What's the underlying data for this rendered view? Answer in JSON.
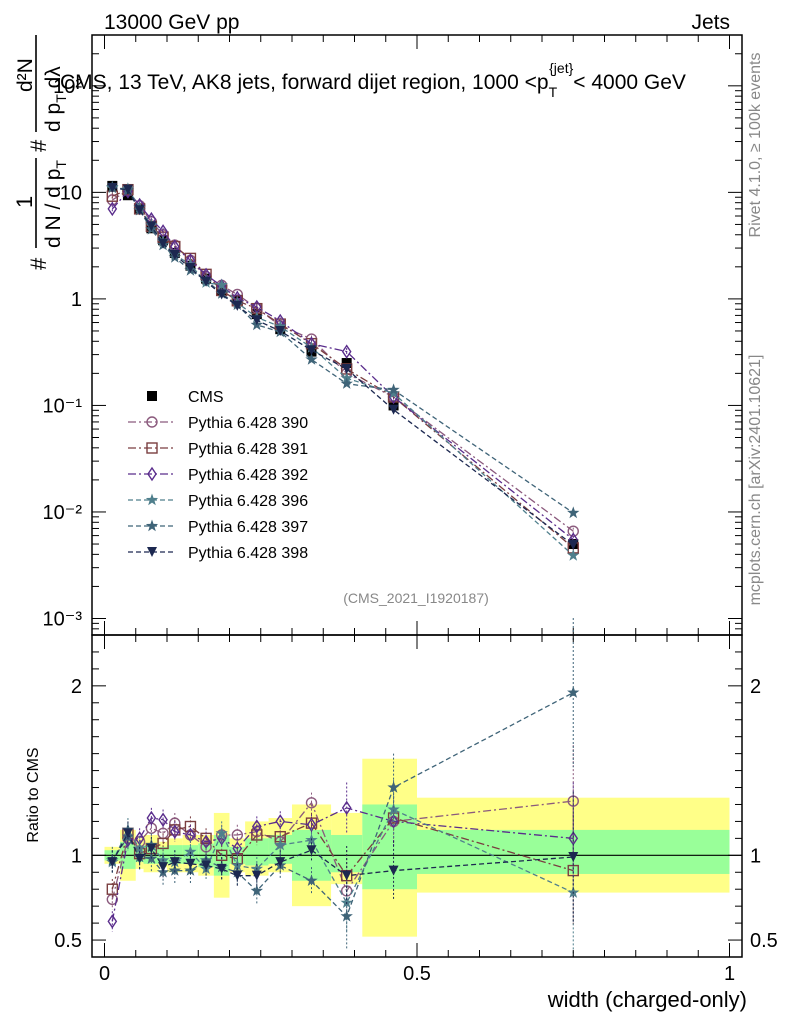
{
  "header": {
    "left": "13000 GeV pp",
    "right": "Jets"
  },
  "side_text": {
    "rivet": "Rivet 4.1.0, ≥ 100k events",
    "site": "mcplots.cern.ch [arXiv:2401.10621]"
  },
  "watermark": "(CMS_2021_I1920187)",
  "colors": {
    "data": "#000000",
    "p390": "#8b5a7d",
    "p391": "#7a3e40",
    "p392": "#5a2d8c",
    "p396": "#4f7f8c",
    "p397": "#3f6478",
    "p398": "#1c2850",
    "band_outer": "#ffff88",
    "band_inner": "#99ff99"
  },
  "chart_data": [
    {
      "type": "line",
      "title": "CMS, 13 TeV, AK8 jets, forward dijet region, 1000 <p_T^{jet}< 4000 GeV",
      "title_parts": {
        "pre": "CMS, 13 TeV, AK8 jets, forward dijet region, 1000 <p",
        "sub": "T",
        "sup": "{jet}",
        "post": "< 4000 GeV"
      },
      "ylabel": "1/(dN/dp_T) d²N/(dp_T dλ)",
      "ylabel_parts": {
        "hash": "#",
        "one": "1",
        "den": "d N / d p",
        "T": "T",
        "num": "d²N",
        "num_den_pre": "d p",
        "num_den_post": " dλ"
      },
      "yscale": "log",
      "ylim": [
        0.0007,
        300
      ],
      "xlim": [
        -0.02,
        1.02
      ],
      "ytick_labels": {
        "0.001": "10⁻³",
        "0.01": "10⁻²",
        "0.1": "10⁻¹",
        "1": "1",
        "10": "10",
        "100": "10²"
      },
      "legend_position": "middle-left",
      "x": [
        0.0125,
        0.0375,
        0.0562,
        0.075,
        0.0937,
        0.1125,
        0.1375,
        0.1625,
        0.1875,
        0.2125,
        0.2437,
        0.2812,
        0.3312,
        0.3875,
        0.4625,
        0.75
      ],
      "series": [
        {
          "name": "CMS",
          "style": "data",
          "marker": "square-filled",
          "values": [
            11.5,
            9.4,
            6.9,
            4.6,
            3.55,
            2.7,
            2.05,
            1.55,
            1.2,
            0.98,
            0.72,
            0.52,
            0.32,
            0.25,
            0.1,
            0.005
          ]
        },
        {
          "name": "Pythia 6.428 390",
          "style": "p390",
          "marker": "circle-open",
          "dash": "8,3,2,3",
          "values": [
            8.5,
            10.4,
            7.5,
            5.3,
            4.0,
            3.2,
            2.3,
            1.62,
            1.34,
            1.1,
            0.82,
            0.56,
            0.42,
            0.2,
            0.12,
            0.0066
          ]
        },
        {
          "name": "Pythia 6.428 391",
          "style": "p391",
          "marker": "square-open",
          "dash": "8,3,2,3",
          "values": [
            9.2,
            10.6,
            7.0,
            4.8,
            3.8,
            3.1,
            2.4,
            1.7,
            1.2,
            0.96,
            0.81,
            0.58,
            0.38,
            0.22,
            0.12,
            0.0046
          ]
        },
        {
          "name": "Pythia 6.428 392",
          "style": "p392",
          "marker": "diamond-open",
          "dash": "8,3,2,3",
          "values": [
            7.0,
            10.2,
            7.6,
            5.6,
            4.3,
            3.1,
            2.3,
            1.68,
            1.32,
            1.02,
            0.84,
            0.62,
            0.38,
            0.32,
            0.12,
            0.0055
          ]
        },
        {
          "name": "Pythia 6.428 396",
          "style": "p396",
          "marker": "star",
          "dash": "5,3",
          "values": [
            11.0,
            10.8,
            7.2,
            4.9,
            3.45,
            2.6,
            2.1,
            1.42,
            1.35,
            0.92,
            0.67,
            0.55,
            0.35,
            0.18,
            0.13,
            0.0039
          ]
        },
        {
          "name": "Pythia 6.428 397",
          "style": "p397",
          "marker": "star",
          "dash": "5,3",
          "values": [
            11.2,
            10.4,
            6.8,
            4.5,
            3.2,
            2.45,
            1.85,
            1.5,
            1.12,
            0.88,
            0.57,
            0.49,
            0.27,
            0.16,
            0.14,
            0.0098
          ]
        },
        {
          "name": "Pythia 6.428 398",
          "style": "p398",
          "marker": "triangle-down",
          "dash": "5,3",
          "values": [
            11.0,
            10.6,
            6.8,
            4.8,
            3.3,
            2.58,
            1.95,
            1.45,
            1.1,
            0.86,
            0.63,
            0.5,
            0.33,
            0.22,
            0.091,
            0.0049
          ]
        }
      ]
    },
    {
      "type": "line",
      "title": "",
      "xlabel": "width (charged-only)",
      "ylabel": "Ratio to CMS",
      "ylim": [
        0.4,
        2.3
      ],
      "xlim": [
        -0.02,
        1.02
      ],
      "yticks": [
        0.5,
        1,
        2
      ],
      "ytick_labels": [
        "0.5",
        "1",
        "2"
      ],
      "xticks": [
        0,
        0.5,
        1
      ],
      "xtick_labels": [
        "0",
        "0.5",
        "1"
      ],
      "bins": [
        [
          0,
          0.025
        ],
        [
          0.025,
          0.05
        ],
        [
          0.05,
          0.0625
        ],
        [
          0.0625,
          0.0875
        ],
        [
          0.0875,
          0.1
        ],
        [
          0.1,
          0.125
        ],
        [
          0.125,
          0.15
        ],
        [
          0.15,
          0.175
        ],
        [
          0.175,
          0.2
        ],
        [
          0.2,
          0.225
        ],
        [
          0.225,
          0.2625
        ],
        [
          0.2625,
          0.3
        ],
        [
          0.3,
          0.3625
        ],
        [
          0.3625,
          0.4125
        ],
        [
          0.4125,
          0.5
        ],
        [
          0.5,
          1.0
        ]
      ],
      "band_outer": [
        [
          0.95,
          1.05
        ],
        [
          0.85,
          1.15
        ],
        [
          0.92,
          1.1
        ],
        [
          0.9,
          1.12
        ],
        [
          0.93,
          1.08
        ],
        [
          0.9,
          1.1
        ],
        [
          0.9,
          1.12
        ],
        [
          0.88,
          1.12
        ],
        [
          0.75,
          1.25
        ],
        [
          0.9,
          1.1
        ],
        [
          0.88,
          1.2
        ],
        [
          0.9,
          1.22
        ],
        [
          0.7,
          1.3
        ],
        [
          0.83,
          1.25
        ],
        [
          0.52,
          1.57
        ],
        [
          0.78,
          1.34
        ]
      ],
      "band_inner": [
        [
          0.97,
          1.03
        ],
        [
          0.92,
          1.08
        ],
        [
          0.96,
          1.06
        ],
        [
          0.95,
          1.06
        ],
        [
          0.96,
          1.05
        ],
        [
          0.95,
          1.06
        ],
        [
          0.95,
          1.06
        ],
        [
          0.93,
          1.07
        ],
        [
          0.88,
          1.12
        ],
        [
          0.95,
          1.05
        ],
        [
          0.94,
          1.1
        ],
        [
          0.95,
          1.12
        ],
        [
          0.85,
          1.15
        ],
        [
          0.9,
          1.12
        ],
        [
          0.8,
          1.3
        ],
        [
          0.89,
          1.15
        ]
      ],
      "reference_line": 1,
      "x": [
        0.0125,
        0.0375,
        0.0562,
        0.075,
        0.0937,
        0.1125,
        0.1375,
        0.1625,
        0.1875,
        0.2125,
        0.2437,
        0.2812,
        0.3312,
        0.3875,
        0.4625,
        0.75
      ],
      "series": [
        {
          "name": "Pythia 6.428 390",
          "style": "p390",
          "marker": "circle-open",
          "dash": "8,3,2,3",
          "values": [
            0.74,
            1.1,
            1.08,
            1.16,
            1.13,
            1.19,
            1.12,
            1.05,
            1.12,
            1.12,
            1.14,
            1.08,
            1.31,
            0.79,
            1.2,
            1.32
          ],
          "err": 0.06
        },
        {
          "name": "Pythia 6.428 391",
          "style": "p391",
          "marker": "square-open",
          "dash": "8,3,2,3",
          "values": [
            0.8,
            1.13,
            1.01,
            1.04,
            1.07,
            1.15,
            1.17,
            1.1,
            1.0,
            0.98,
            1.12,
            1.11,
            1.19,
            0.88,
            1.22,
            0.91
          ],
          "err": 0.06
        },
        {
          "name": "Pythia 6.428 392",
          "style": "p392",
          "marker": "diamond-open",
          "dash": "8,3,2,3",
          "values": [
            0.61,
            1.09,
            1.1,
            1.22,
            1.21,
            1.14,
            1.12,
            1.08,
            1.1,
            1.04,
            1.17,
            1.2,
            1.18,
            1.28,
            1.2,
            1.1
          ],
          "err": 0.06
        },
        {
          "name": "Pythia 6.428 396",
          "style": "p396",
          "marker": "star",
          "dash": "5,3",
          "values": [
            0.96,
            1.15,
            1.04,
            1.06,
            0.97,
            0.96,
            1.02,
            0.92,
            1.13,
            0.94,
            0.92,
            1.06,
            1.09,
            0.72,
            1.27,
            0.78
          ],
          "err": 0.07
        },
        {
          "name": "Pythia 6.428 397",
          "style": "p397",
          "marker": "star",
          "dash": "5,3",
          "values": [
            0.97,
            1.11,
            0.99,
            0.98,
            0.9,
            0.91,
            0.91,
            0.97,
            0.93,
            0.9,
            0.79,
            0.94,
            0.85,
            0.64,
            1.4,
            1.96
          ],
          "err": 0.08
        },
        {
          "name": "Pythia 6.428 398",
          "style": "p398",
          "marker": "triangle-down",
          "dash": "5,3",
          "values": [
            0.96,
            1.13,
            0.98,
            1.04,
            0.93,
            0.96,
            0.95,
            0.94,
            0.92,
            0.88,
            0.88,
            0.96,
            1.03,
            0.88,
            0.91,
            0.99
          ],
          "err": 0.07
        }
      ]
    }
  ]
}
